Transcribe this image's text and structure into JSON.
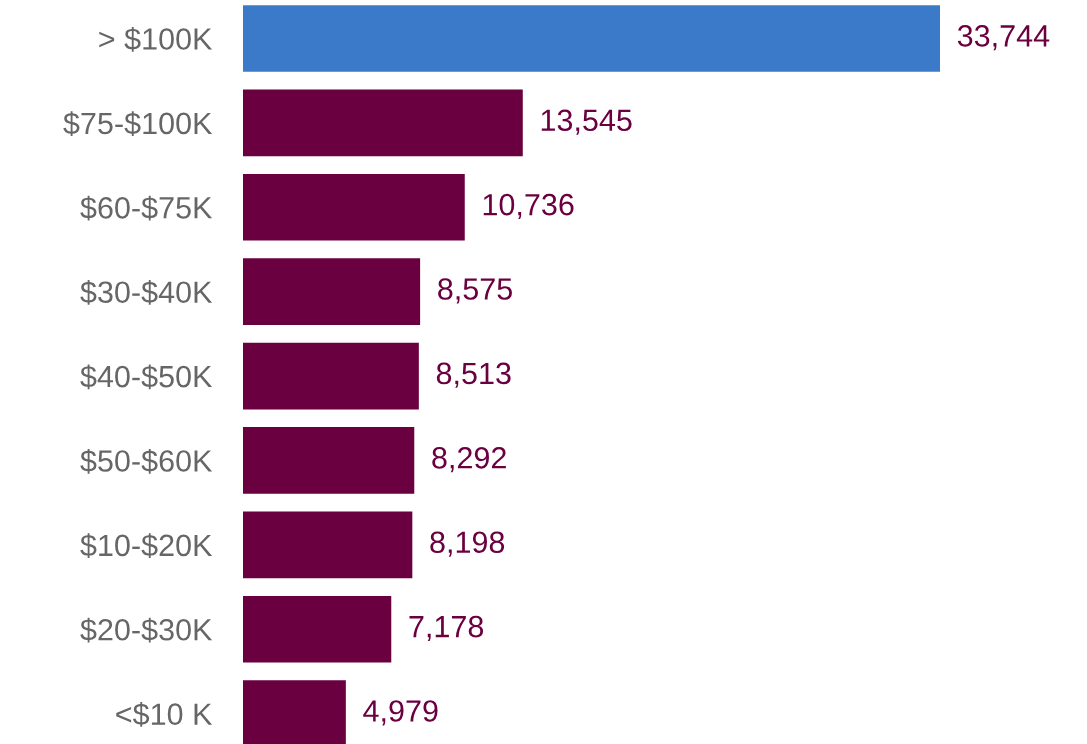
{
  "chart_data": {
    "type": "bar",
    "orientation": "horizontal",
    "categories": [
      "> $100K",
      "$75-$100K",
      "$60-$75K",
      "$30-$40K",
      "$40-$50K",
      "$50-$60K",
      "$10-$20K",
      "$20-$30K",
      "<$10 K"
    ],
    "values": [
      33744,
      13545,
      10736,
      8575,
      8513,
      8292,
      8198,
      7178,
      4979
    ],
    "colors": [
      "#3b7ac9",
      "#6b0040",
      "#6b0040",
      "#6b0040",
      "#6b0040",
      "#6b0040",
      "#6b0040",
      "#6b0040",
      "#6b0040"
    ],
    "value_labels": [
      "33,744",
      "13,545",
      "10,736",
      "8,575",
      "8,513",
      "8,292",
      "8,198",
      "7,178",
      "4,979"
    ],
    "tick_labels": "y",
    "grid": false,
    "legend": false
  }
}
